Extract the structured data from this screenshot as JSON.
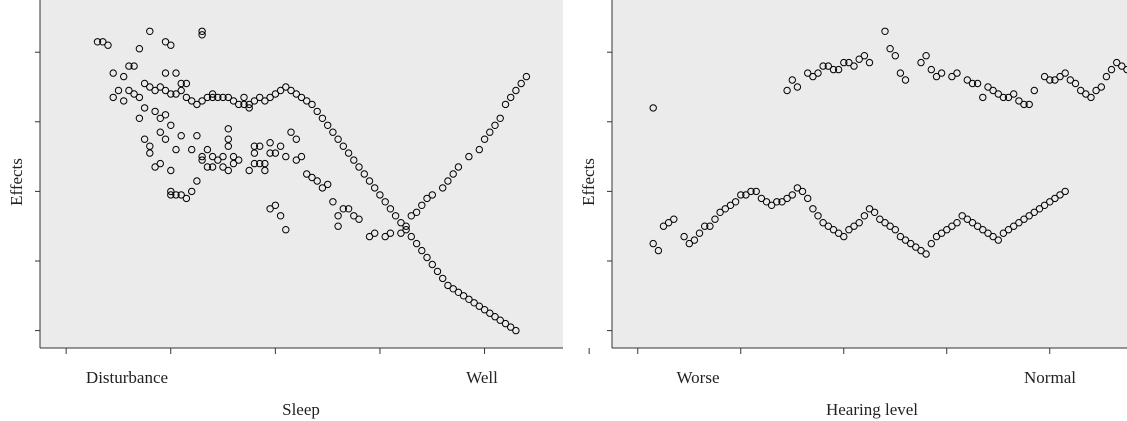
{
  "chart_data": [
    {
      "type": "scatter",
      "xlabel": "Sleep",
      "ylabel": "Effects",
      "x_tick_labels": [
        "Disturbance",
        "Well"
      ],
      "xlim": [
        0,
        100
      ],
      "ylim": [
        0,
        100
      ],
      "x_ticks": [
        5,
        25,
        45,
        65,
        85,
        105
      ],
      "y_ticks": [
        5,
        25,
        45,
        65,
        85
      ],
      "background": "#ebebeb",
      "marker_color": "#000000",
      "grid": false,
      "legend": "none",
      "points": [
        [
          11,
          88
        ],
        [
          12,
          88
        ],
        [
          13,
          87
        ],
        [
          21,
          91
        ],
        [
          19,
          86
        ],
        [
          14,
          79
        ],
        [
          16,
          78
        ],
        [
          18,
          81
        ],
        [
          17,
          81
        ],
        [
          24,
          88
        ],
        [
          25,
          87
        ],
        [
          31,
          91
        ],
        [
          31,
          90
        ],
        [
          26,
          79
        ],
        [
          24,
          79
        ],
        [
          27,
          76
        ],
        [
          28,
          76
        ],
        [
          33,
          72
        ],
        [
          20,
          69
        ],
        [
          19,
          66
        ],
        [
          24,
          67
        ],
        [
          23,
          66
        ],
        [
          22,
          68
        ],
        [
          25,
          64
        ],
        [
          27,
          61
        ],
        [
          30,
          61
        ],
        [
          36,
          63
        ],
        [
          36,
          60
        ],
        [
          39,
          70
        ],
        [
          40,
          69
        ],
        [
          48,
          62
        ],
        [
          49,
          60
        ],
        [
          46,
          58
        ],
        [
          44,
          59
        ],
        [
          42,
          58
        ],
        [
          41,
          58
        ],
        [
          36,
          58
        ],
        [
          43,
          51
        ],
        [
          43,
          53
        ],
        [
          41,
          56
        ],
        [
          36,
          51
        ],
        [
          37,
          53
        ],
        [
          38,
          54
        ],
        [
          35,
          52
        ],
        [
          31,
          55
        ],
        [
          33,
          55
        ],
        [
          32,
          57
        ],
        [
          29,
          57
        ],
        [
          26,
          57
        ],
        [
          24,
          60
        ],
        [
          23,
          62
        ],
        [
          21,
          58
        ],
        [
          20,
          60
        ],
        [
          21,
          56
        ],
        [
          22,
          52
        ],
        [
          23,
          53
        ],
        [
          25,
          51
        ],
        [
          25,
          45
        ],
        [
          25,
          44
        ],
        [
          26,
          44
        ],
        [
          27,
          44
        ],
        [
          28,
          43
        ],
        [
          29,
          45
        ],
        [
          30,
          48
        ],
        [
          31,
          54
        ],
        [
          32,
          52
        ],
        [
          33,
          52
        ],
        [
          34,
          54
        ],
        [
          35,
          55
        ],
        [
          37,
          55
        ],
        [
          40,
          51
        ],
        [
          41,
          53
        ],
        [
          42,
          53
        ],
        [
          44,
          56
        ],
        [
          45,
          56
        ],
        [
          47,
          55
        ],
        [
          49,
          54
        ],
        [
          50,
          55
        ],
        [
          55,
          47
        ],
        [
          51,
          50
        ],
        [
          52,
          49
        ],
        [
          53,
          48
        ],
        [
          54,
          46
        ],
        [
          56,
          42
        ],
        [
          58,
          40
        ],
        [
          45,
          41
        ],
        [
          44,
          40
        ],
        [
          46,
          38
        ],
        [
          47,
          34
        ],
        [
          57,
          35
        ],
        [
          57,
          38
        ],
        [
          59,
          40
        ],
        [
          60,
          38
        ],
        [
          61,
          37
        ],
        [
          63,
          32
        ],
        [
          64,
          33
        ],
        [
          66,
          32
        ],
        [
          67,
          33
        ],
        [
          69,
          33
        ],
        [
          70,
          35
        ],
        [
          71,
          38
        ],
        [
          72,
          39
        ],
        [
          73,
          41
        ],
        [
          74,
          43
        ],
        [
          75,
          44
        ],
        [
          77,
          46
        ],
        [
          78,
          48
        ],
        [
          79,
          50
        ],
        [
          80,
          52
        ],
        [
          82,
          55
        ],
        [
          84,
          57
        ],
        [
          85,
          60
        ],
        [
          86,
          62
        ],
        [
          87,
          64
        ],
        [
          88,
          66
        ],
        [
          89,
          70
        ],
        [
          90,
          72
        ],
        [
          91,
          74
        ],
        [
          92,
          76
        ],
        [
          93,
          78
        ],
        [
          14,
          72
        ],
        [
          15,
          74
        ],
        [
          16,
          71
        ],
        [
          17,
          74
        ],
        [
          18,
          73
        ],
        [
          19,
          72
        ],
        [
          20,
          76
        ],
        [
          21,
          75
        ],
        [
          22,
          74
        ],
        [
          23,
          75
        ],
        [
          24,
          74
        ],
        [
          25,
          73
        ],
        [
          26,
          73
        ],
        [
          27,
          74
        ],
        [
          28,
          72
        ],
        [
          29,
          71
        ],
        [
          30,
          70
        ],
        [
          31,
          71
        ],
        [
          32,
          72
        ],
        [
          33,
          73
        ],
        [
          34,
          72
        ],
        [
          35,
          72
        ],
        [
          36,
          72
        ],
        [
          37,
          71
        ],
        [
          38,
          70
        ],
        [
          39,
          72
        ],
        [
          40,
          70
        ],
        [
          41,
          71
        ],
        [
          42,
          72
        ],
        [
          43,
          71
        ],
        [
          44,
          72
        ],
        [
          45,
          73
        ],
        [
          46,
          74
        ],
        [
          47,
          75
        ],
        [
          48,
          74
        ],
        [
          49,
          73
        ],
        [
          50,
          72
        ],
        [
          51,
          71
        ],
        [
          52,
          70
        ],
        [
          53,
          68
        ],
        [
          54,
          66
        ],
        [
          55,
          64
        ],
        [
          56,
          62
        ],
        [
          57,
          60
        ],
        [
          58,
          58
        ],
        [
          59,
          56
        ],
        [
          60,
          54
        ],
        [
          61,
          52
        ],
        [
          62,
          50
        ],
        [
          63,
          48
        ],
        [
          64,
          46
        ],
        [
          65,
          44
        ],
        [
          66,
          42
        ],
        [
          67,
          40
        ],
        [
          68,
          38
        ],
        [
          69,
          36
        ],
        [
          70,
          34
        ],
        [
          71,
          32
        ],
        [
          72,
          30
        ],
        [
          73,
          28
        ],
        [
          74,
          26
        ],
        [
          75,
          24
        ],
        [
          76,
          22
        ],
        [
          77,
          20
        ],
        [
          78,
          18
        ],
        [
          79,
          17
        ],
        [
          80,
          16
        ],
        [
          81,
          15
        ],
        [
          82,
          14
        ],
        [
          83,
          13
        ],
        [
          84,
          12
        ],
        [
          85,
          11
        ],
        [
          86,
          10
        ],
        [
          87,
          9
        ],
        [
          88,
          8
        ],
        [
          89,
          7
        ],
        [
          90,
          6
        ],
        [
          91,
          5
        ]
      ]
    },
    {
      "type": "scatter",
      "xlabel": "Hearing level",
      "ylabel": "Effects",
      "x_tick_labels": [
        "Worse",
        "Normal"
      ],
      "xlim": [
        0,
        100
      ],
      "ylim": [
        0,
        100
      ],
      "x_ticks": [
        5,
        25,
        45,
        65,
        85,
        105
      ],
      "y_ticks": [
        5,
        25,
        45,
        65,
        85
      ],
      "background": "#ebebeb",
      "marker_color": "#000000",
      "grid": false,
      "legend": "none",
      "points": []
    }
  ]
}
